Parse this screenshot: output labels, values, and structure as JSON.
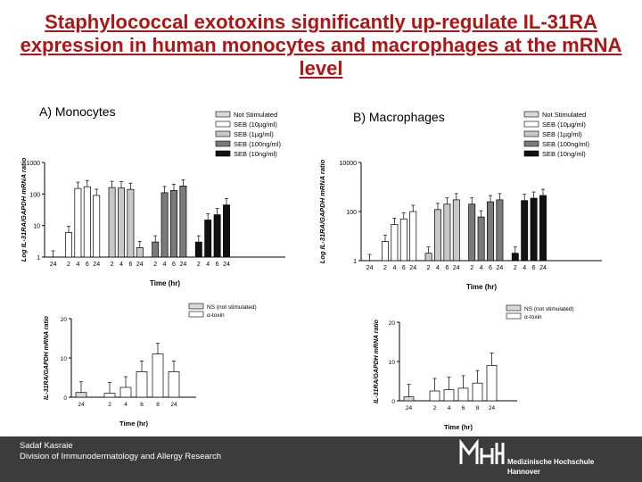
{
  "title": "Staphylococcal exotoxins significantly up-regulate IL-31RA expression in human monocytes and macrophages at the mRNA level",
  "footer": {
    "author": "Sadaf Kasraie",
    "department": "Division of Immunodermatology and Allergy Research",
    "logo_line1": "Medizinische Hochschule",
    "logo_line2": "Hannover",
    "logo_mark": "MHH"
  },
  "colors": {
    "title": "#b01515",
    "footer_bg": "#3c3c3c"
  },
  "chart_data": [
    {
      "id": "A",
      "type": "bar",
      "panel_label": "A) Monocytes",
      "ylabel": "Log IL-31RA/GAPDH mRNA ratio",
      "xlabel": "Time (hr)",
      "yscale": "log",
      "ylim": [
        1,
        1000
      ],
      "yticks": [
        "1",
        "10",
        "100",
        "1000"
      ],
      "legend_position": "top-right",
      "legend": [
        "Not Stimulated",
        "SEB (10µg/ml)",
        "SEB (1µg/ml)",
        "SEB (100ng/ml)",
        "SEB (10ng/ml)"
      ],
      "groups": [
        {
          "name": "Not Stimulated",
          "color": "#d9d9d9",
          "categories": [
            "24"
          ],
          "values": [
            1
          ]
        },
        {
          "name": "SEB (10µg/ml)",
          "color": "#ffffff",
          "categories": [
            "2",
            "4",
            "6",
            "24"
          ],
          "values": [
            6,
            150,
            170,
            90
          ]
        },
        {
          "name": "SEB (1µg/ml)",
          "color": "#c8c8c8",
          "categories": [
            "2",
            "4",
            "6",
            "24"
          ],
          "values": [
            160,
            155,
            140,
            2
          ]
        },
        {
          "name": "SEB (100ng/ml)",
          "color": "#7a7a7a",
          "categories": [
            "2",
            "4",
            "6",
            "24"
          ],
          "values": [
            3,
            110,
            130,
            180
          ]
        },
        {
          "name": "SEB (10ng/ml)",
          "color": "#111111",
          "categories": [
            "2",
            "4",
            "6",
            "24"
          ],
          "values": [
            3,
            15,
            22,
            45
          ]
        }
      ]
    },
    {
      "id": "B",
      "type": "bar",
      "panel_label": "B) Macrophages",
      "ylabel": "Log IL-31RA/GAPDH mRNA ratio",
      "xlabel": "Time (hr)",
      "yscale": "log",
      "ylim": [
        1,
        10000
      ],
      "yticks": [
        "1",
        "100",
        "10000"
      ],
      "legend_position": "top-right",
      "legend": [
        "Not Stimulated",
        "SEB (10µg/ml)",
        "SEB (1µg/ml)",
        "SEB (100ng/ml)",
        "SEB (10ng/ml)"
      ],
      "groups": [
        {
          "name": "Not Stimulated",
          "color": "#d9d9d9",
          "categories": [
            "24"
          ],
          "values": [
            1
          ]
        },
        {
          "name": "SEB (10µg/ml)",
          "color": "#ffffff",
          "categories": [
            "2",
            "4",
            "6",
            "24"
          ],
          "values": [
            6,
            30,
            50,
            100
          ]
        },
        {
          "name": "SEB (1µg/ml)",
          "color": "#c8c8c8",
          "categories": [
            "2",
            "4",
            "6",
            "24"
          ],
          "values": [
            2,
            120,
            200,
            300
          ]
        },
        {
          "name": "SEB (100ng/ml)",
          "color": "#7a7a7a",
          "categories": [
            "2",
            "4",
            "6",
            "24"
          ],
          "values": [
            200,
            60,
            250,
            300
          ]
        },
        {
          "name": "SEB (10ng/ml)",
          "color": "#111111",
          "categories": [
            "2",
            "4",
            "6",
            "24"
          ],
          "values": [
            2,
            280,
            350,
            450
          ]
        }
      ]
    },
    {
      "id": "C",
      "type": "bar",
      "ylabel": "IL-31RA/GAPDH mRNA ratio",
      "xlabel": "Time (hr)",
      "ylim": [
        0,
        20
      ],
      "yticks": [
        "0",
        "10",
        "20"
      ],
      "legend": [
        "NS (not stimulated)",
        "α-toxin"
      ],
      "groups": [
        {
          "name": "NS (not stimulated)",
          "color": "#d9d9d9",
          "categories": [
            "24"
          ],
          "values": [
            1.2
          ]
        },
        {
          "name": "α-toxin",
          "color": "#ffffff",
          "categories": [
            "2",
            "4",
            "6",
            "8",
            "24"
          ],
          "values": [
            1.0,
            2.5,
            6.5,
            11.0,
            6.5
          ]
        }
      ]
    },
    {
      "id": "D",
      "type": "bar",
      "ylabel": "IL-31RA/GAPDH mRNA ratio",
      "xlabel": "Time (hr)",
      "ylim": [
        0,
        20
      ],
      "yticks": [
        "0",
        "10",
        "20"
      ],
      "legend": [
        "NS (not stimulated)",
        "α-toxin"
      ],
      "groups": [
        {
          "name": "NS (not stimulated)",
          "color": "#d9d9d9",
          "categories": [
            "24"
          ],
          "values": [
            1.0
          ]
        },
        {
          "name": "α-toxin",
          "color": "#ffffff",
          "categories": [
            "2",
            "4",
            "6",
            "8",
            "24"
          ],
          "values": [
            2.5,
            2.8,
            3.2,
            4.5,
            9.0
          ]
        }
      ]
    }
  ]
}
